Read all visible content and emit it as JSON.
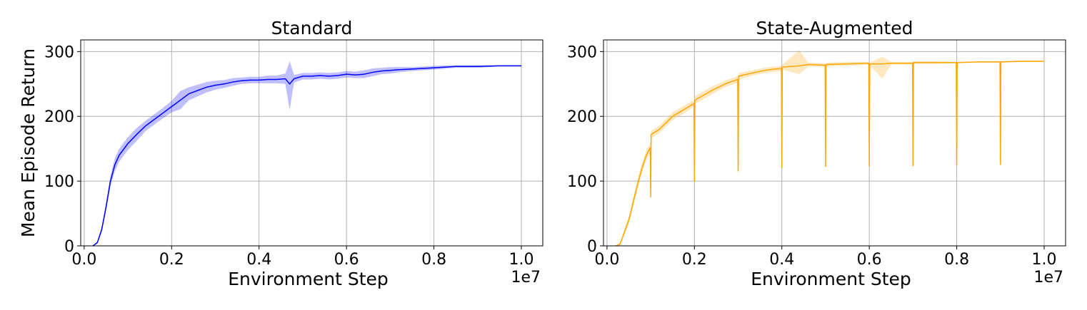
{
  "chart_data": [
    {
      "type": "line",
      "title": "Standard",
      "xlabel": "Environment Step",
      "ylabel": "Mean Episode Return",
      "x_offset_label": "1e7",
      "color": "#0000ff",
      "grid": true,
      "xlim": [
        -0.008,
        1.049
      ],
      "ylim": [
        0,
        318
      ],
      "xticks": [
        {
          "value": 0,
          "label": "0.0"
        },
        0.2,
        0.4,
        0.6,
        0.8,
        {
          "value": 1,
          "label": "1.0"
        }
      ],
      "yticks": [
        0,
        100,
        200,
        300
      ],
      "x": [
        0.02,
        0.03,
        0.04,
        0.05,
        0.06,
        0.07,
        0.08,
        0.1,
        0.12,
        0.14,
        0.16,
        0.18,
        0.2,
        0.22,
        0.24,
        0.26,
        0.28,
        0.3,
        0.32,
        0.34,
        0.36,
        0.38,
        0.4,
        0.42,
        0.44,
        0.46,
        0.47,
        0.48,
        0.5,
        0.52,
        0.54,
        0.56,
        0.58,
        0.6,
        0.62,
        0.64,
        0.66,
        0.68,
        0.7,
        0.72,
        0.75,
        0.8,
        0.85,
        0.9,
        0.95,
        1.0
      ],
      "values": [
        0,
        5,
        25,
        60,
        100,
        125,
        140,
        158,
        172,
        185,
        195,
        205,
        215,
        225,
        235,
        240,
        245,
        248,
        250,
        253,
        255,
        256,
        256,
        257,
        257,
        258,
        250,
        258,
        262,
        262,
        263,
        262,
        263,
        265,
        264,
        265,
        268,
        270,
        271,
        272,
        273,
        275,
        277,
        277,
        278,
        278
      ],
      "upper": [
        0,
        7,
        29,
        66,
        108,
        135,
        150,
        168,
        182,
        193,
        203,
        213,
        224,
        239,
        245,
        249,
        253,
        255,
        256,
        259,
        260,
        261,
        261,
        263,
        263,
        266,
        285,
        264,
        267,
        267,
        268,
        267,
        268,
        270,
        269,
        271,
        274,
        275,
        276,
        276,
        276,
        278,
        279,
        279,
        279,
        279
      ],
      "lower": [
        0,
        3,
        21,
        54,
        92,
        115,
        130,
        148,
        162,
        177,
        187,
        197,
        206,
        211,
        225,
        231,
        237,
        241,
        244,
        247,
        250,
        251,
        251,
        251,
        251,
        250,
        210,
        252,
        257,
        257,
        258,
        257,
        258,
        260,
        259,
        259,
        262,
        265,
        266,
        268,
        270,
        272,
        275,
        275,
        277,
        277
      ]
    },
    {
      "type": "line",
      "title": "State-Augmented",
      "xlabel": "Environment Step",
      "x_offset_label": "1e7",
      "color": "#ffa500",
      "grid": true,
      "xlim": [
        -0.008,
        1.049
      ],
      "ylim": [
        0,
        318
      ],
      "xticks": [
        {
          "value": 0,
          "label": "0.0"
        },
        0.2,
        0.4,
        0.6,
        0.8,
        {
          "value": 1,
          "label": "1.0"
        }
      ],
      "yticks": [
        0,
        100,
        200,
        300
      ],
      "x": [
        0.02,
        0.03,
        0.05,
        0.07,
        0.08,
        0.09,
        0.099,
        0.1,
        0.101,
        0.12,
        0.15,
        0.18,
        0.199,
        0.2,
        0.201,
        0.24,
        0.27,
        0.299,
        0.3,
        0.301,
        0.34,
        0.37,
        0.399,
        0.4,
        0.401,
        0.44,
        0.46,
        0.499,
        0.5,
        0.501,
        0.55,
        0.599,
        0.6,
        0.601,
        0.63,
        0.65,
        0.699,
        0.7,
        0.701,
        0.75,
        0.799,
        0.8,
        0.801,
        0.85,
        0.899,
        0.9,
        0.901,
        0.95,
        1.0
      ],
      "values": [
        0,
        3,
        40,
        95,
        120,
        140,
        152,
        75,
        172,
        180,
        200,
        212,
        220,
        100,
        225,
        240,
        250,
        257,
        115,
        262,
        268,
        272,
        274,
        120,
        276,
        278,
        280,
        279,
        122,
        280,
        281,
        282,
        123,
        281,
        281,
        282,
        282,
        123,
        283,
        283,
        283,
        124,
        283,
        284,
        284,
        125,
        284,
        285,
        285
      ],
      "upper": [
        0,
        5,
        46,
        103,
        128,
        148,
        160,
        78,
        178,
        186,
        206,
        218,
        225,
        103,
        231,
        246,
        255,
        262,
        118,
        267,
        272,
        276,
        278,
        123,
        280,
        302,
        283,
        282,
        124,
        283,
        284,
        284,
        125,
        283,
        292,
        284,
        284,
        125,
        285,
        285,
        284,
        125,
        284,
        285,
        285,
        126,
        285,
        286,
        286
      ],
      "lower": [
        0,
        1,
        34,
        87,
        112,
        132,
        144,
        72,
        166,
        174,
        194,
        206,
        215,
        97,
        219,
        234,
        245,
        252,
        112,
        257,
        264,
        268,
        270,
        117,
        272,
        265,
        277,
        276,
        120,
        277,
        278,
        280,
        121,
        279,
        258,
        280,
        280,
        121,
        281,
        281,
        282,
        123,
        282,
        283,
        283,
        124,
        283,
        284,
        284
      ]
    }
  ]
}
